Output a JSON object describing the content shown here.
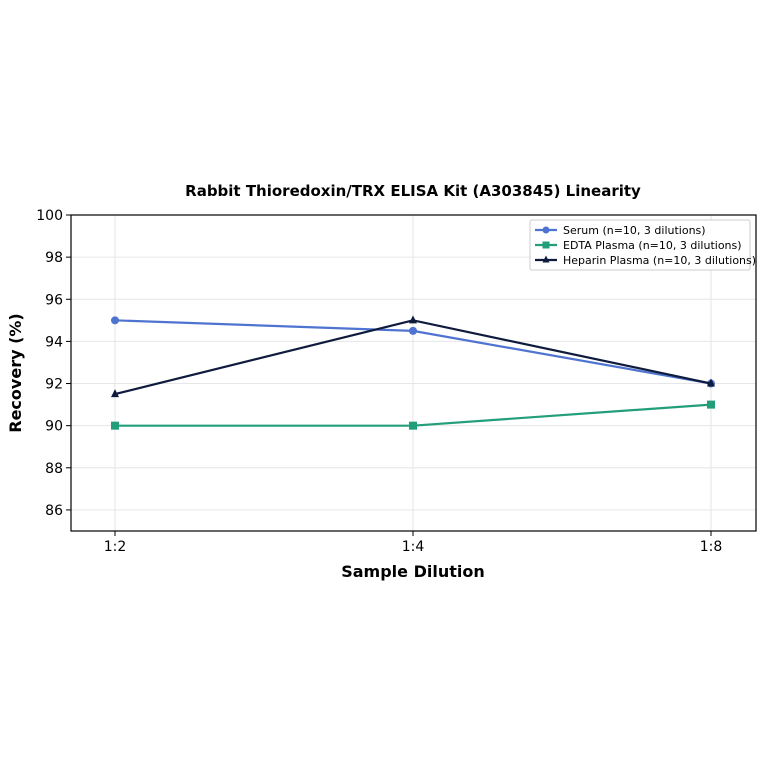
{
  "chart_data": {
    "type": "line",
    "title": "Rabbit Thioredoxin/TRX ELISA Kit (A303845) Linearity",
    "xlabel": "Sample Dilution",
    "ylabel": "Recovery (%)",
    "categories": [
      "1:2",
      "1:4",
      "1:8"
    ],
    "ylim": [
      85,
      100
    ],
    "yticks": [
      86,
      88,
      90,
      92,
      94,
      96,
      98,
      100
    ],
    "grid": true,
    "legend_position": "top-right",
    "series": [
      {
        "name": "Serum (n=10, 3 dilutions)",
        "values": [
          95,
          94.5,
          92
        ],
        "color": "#4e73d0",
        "marker": "circle"
      },
      {
        "name": "EDTA Plasma (n=10, 3 dilutions)",
        "values": [
          90,
          90,
          91
        ],
        "color": "#239e7a",
        "marker": "square"
      },
      {
        "name": "Heparin Plasma (n=10, 3 dilutions)",
        "values": [
          91.5,
          95,
          92
        ],
        "color": "#0f1b3d",
        "marker": "triangle"
      }
    ]
  }
}
